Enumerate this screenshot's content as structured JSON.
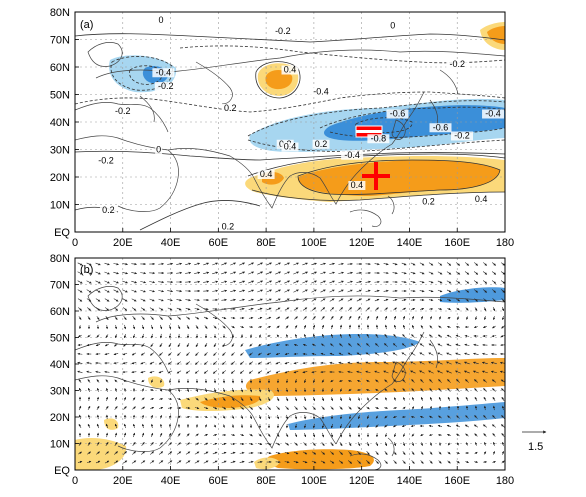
{
  "panels": [
    {
      "label": "(a)",
      "y_ticks": [
        "80N",
        "70N",
        "60N",
        "50N",
        "40N",
        "30N",
        "20N",
        "10N",
        "EQ"
      ],
      "x_ticks": [
        "0",
        "20E",
        "40E",
        "60E",
        "80E",
        "100E",
        "120E",
        "140E",
        "160E",
        "180"
      ],
      "contour_labels": [
        {
          "text": "0",
          "lon": 36,
          "lat": 76
        },
        {
          "text": "-0.2",
          "lon": 87,
          "lat": 72
        },
        {
          "text": "0",
          "lon": 133,
          "lat": 74
        },
        {
          "text": "-0.2",
          "lon": 160,
          "lat": 60
        },
        {
          "text": "-0.2",
          "lon": 38,
          "lat": 52
        },
        {
          "text": "-0.4",
          "lon": 37,
          "lat": 57
        },
        {
          "text": "0.4",
          "lon": 90,
          "lat": 58
        },
        {
          "text": "0.2",
          "lon": 65,
          "lat": 44
        },
        {
          "text": "-0.2",
          "lon": 20,
          "lat": 43
        },
        {
          "text": "-0.4",
          "lon": 103,
          "lat": 50
        },
        {
          "text": "-0.6",
          "lon": 135,
          "lat": 42
        },
        {
          "text": "-0.4",
          "lon": 175,
          "lat": 42
        },
        {
          "text": "-0.8",
          "lon": 127,
          "lat": 33
        },
        {
          "text": "-0.6",
          "lon": 153,
          "lat": 37
        },
        {
          "text": "-0.2",
          "lon": 162,
          "lat": 34
        },
        {
          "text": "0.2",
          "lon": 88,
          "lat": 31
        },
        {
          "text": "0.4",
          "lon": 90,
          "lat": 30
        },
        {
          "text": "0.2",
          "lon": 103,
          "lat": 31
        },
        {
          "text": "-0.4",
          "lon": 116,
          "lat": 27
        },
        {
          "text": "0",
          "lon": 35,
          "lat": 29
        },
        {
          "text": "-0.2",
          "lon": 13,
          "lat": 25
        },
        {
          "text": "0.4",
          "lon": 80,
          "lat": 20
        },
        {
          "text": "0.4",
          "lon": 118,
          "lat": 16
        },
        {
          "text": "0.2",
          "lon": 148,
          "lat": 10
        },
        {
          "text": "0.4",
          "lon": 170,
          "lat": 11
        },
        {
          "text": "0.2",
          "lon": 14,
          "lat": 7
        },
        {
          "text": "0.2",
          "lon": 64,
          "lat": 1
        }
      ],
      "colors": {
        "positive": "#f59c1a",
        "positive_light": "#fbd97a",
        "negative": "#3b8fd9",
        "negative_light": "#a7d6f0",
        "marker": "#ff0000"
      }
    },
    {
      "label": "(b)",
      "y_ticks": [
        "80N",
        "70N",
        "60N",
        "50N",
        "40N",
        "30N",
        "20N",
        "10N",
        "EQ"
      ],
      "x_ticks": [
        "0",
        "20E",
        "40E",
        "60E",
        "80E",
        "100E",
        "120E",
        "140E",
        "160E",
        "180"
      ],
      "reference_vector": "1.5"
    }
  ]
}
